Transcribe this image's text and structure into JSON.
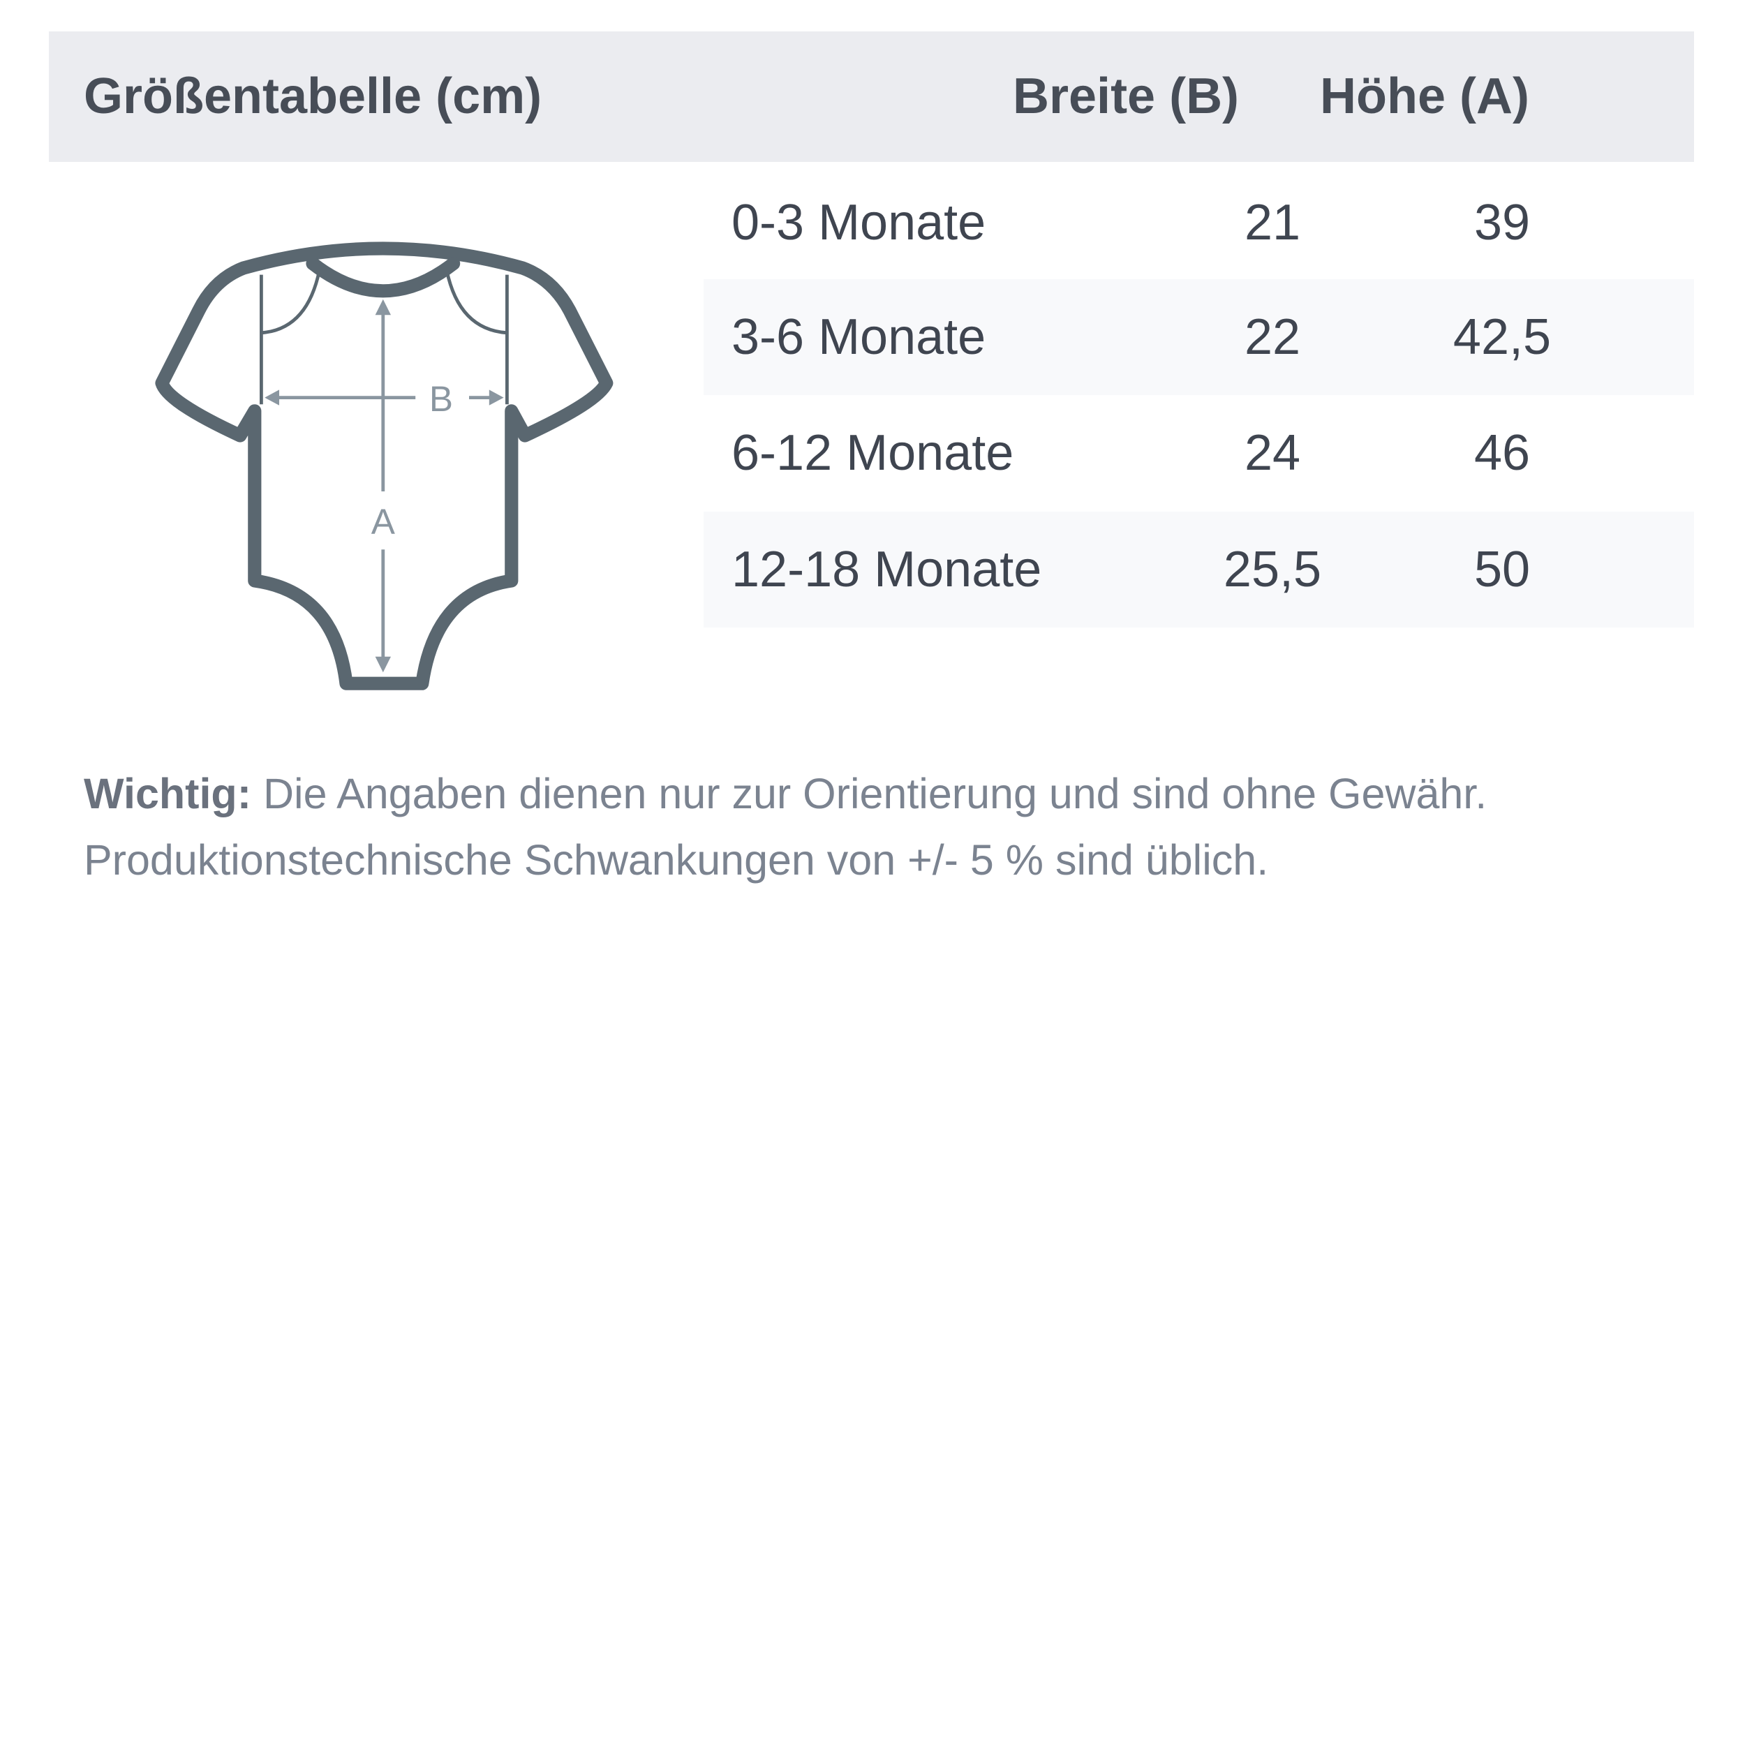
{
  "header": {
    "title": "Größentabelle (cm)",
    "col_width": "Breite (B)",
    "col_height": "Höhe (A)"
  },
  "rows": [
    {
      "size": "0-3 Monate",
      "width": "21",
      "height": "39"
    },
    {
      "size": "3-6 Monate",
      "width": "22",
      "height": "42,5"
    },
    {
      "size": "6-12 Monate",
      "width": "24",
      "height": "46"
    },
    {
      "size": "12-18 Monate",
      "width": "25,5",
      "height": "50"
    }
  ],
  "diagram": {
    "label_width": "B",
    "label_height": "A",
    "icon": "baby-bodysuit-icon"
  },
  "note": {
    "bold": "Wichtig:",
    "line1": " Die Angaben dienen nur zur Orientierung und sind ohne Gewähr.",
    "line2": "Produktionstechnische Schwankungen von +/- 5 % sind üblich."
  },
  "colors": {
    "header_bg": "#ebecf0",
    "row_shade": "#f8f9fb",
    "outline": "#5a6770",
    "measure": "#8a96a0",
    "text": "#474d57"
  }
}
